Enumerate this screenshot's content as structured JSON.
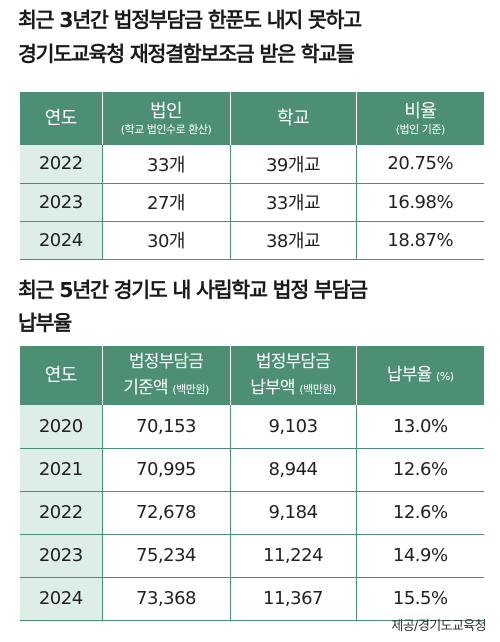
{
  "section1": {
    "title_line1": "최근 3년간 법정부담금 한푼도 내지 못하고",
    "title_line2": "경기도교육청 재정결함보조금 받은 학교들",
    "headers": {
      "year": "연도",
      "corp": "법인",
      "corp_note": "(학교 법인수로 환산)",
      "school": "학교",
      "ratio": "비율",
      "ratio_note": "(법인 기준)"
    },
    "rows": [
      {
        "year": "2022",
        "corp": "33개",
        "school": "39개교",
        "ratio": "20.75%"
      },
      {
        "year": "2023",
        "corp": "27개",
        "school": "33개교",
        "ratio": "16.98%"
      },
      {
        "year": "2024",
        "corp": "30개",
        "school": "38개교",
        "ratio": "18.87%"
      }
    ]
  },
  "section2": {
    "title_line1": "최근 5년간 경기도 내 사립학교 법정 부담금",
    "title_line2": "납부율",
    "headers": {
      "year": "연도",
      "standard_line1": "법정부담금",
      "standard_line2": "기준액",
      "standard_unit": "(백만원)",
      "paid_line1": "법정부담금",
      "paid_line2": "납부액",
      "paid_unit": "(백만원)",
      "rate": "납부율",
      "rate_unit": "(%)"
    },
    "rows": [
      {
        "year": "2020",
        "standard": "70,153",
        "paid": "9,103",
        "rate": "13.0%"
      },
      {
        "year": "2021",
        "standard": "70,995",
        "paid": "8,944",
        "rate": "12.6%"
      },
      {
        "year": "2022",
        "standard": "72,678",
        "paid": "9,184",
        "rate": "12.6%"
      },
      {
        "year": "2023",
        "standard": "75,234",
        "paid": "11,224",
        "rate": "14.9%"
      },
      {
        "year": "2024",
        "standard": "73,368",
        "paid": "11,367",
        "rate": "15.5%"
      }
    ]
  },
  "source": "제공/경기도교육청",
  "colors": {
    "header": "#4d8f74",
    "year_cell": "#ddeee6",
    "text": "#1f1f1f"
  },
  "chart_data": [
    {
      "type": "table",
      "title": "최근 3년간 법정부담금 한푼도 내지 못하고 경기도교육청 재정결함보조금 받은 학교들",
      "columns": [
        "연도",
        "법인 (학교 법인수로 환산)",
        "학교",
        "비율 (법인 기준)"
      ],
      "rows": [
        [
          "2022",
          "33개",
          "39개교",
          "20.75%"
        ],
        [
          "2023",
          "27개",
          "33개교",
          "16.98%"
        ],
        [
          "2024",
          "30개",
          "38개교",
          "18.87%"
        ]
      ]
    },
    {
      "type": "table",
      "title": "최근 5년간 경기도 내 사립학교 법정 부담금 납부율",
      "columns": [
        "연도",
        "법정부담금 기준액 (백만원)",
        "법정부담금 납부액 (백만원)",
        "납부율 (%)"
      ],
      "rows": [
        [
          "2020",
          "70,153",
          "9,103",
          "13.0%"
        ],
        [
          "2021",
          "70,995",
          "8,944",
          "12.6%"
        ],
        [
          "2022",
          "72,678",
          "9,184",
          "12.6%"
        ],
        [
          "2023",
          "75,234",
          "11,224",
          "14.9%"
        ],
        [
          "2024",
          "73,368",
          "11,367",
          "15.5%"
        ]
      ]
    }
  ]
}
